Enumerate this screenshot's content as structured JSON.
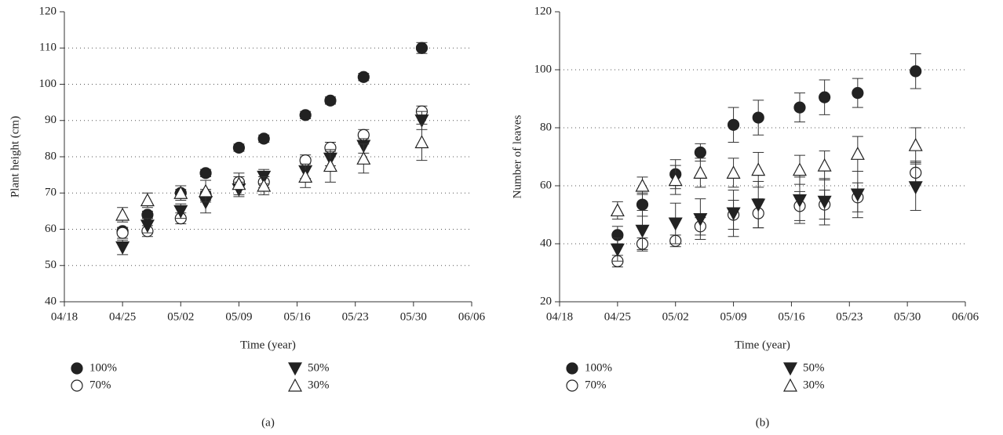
{
  "chart_data": [
    {
      "type": "scatter",
      "caption": "(a)",
      "x_label": "Time (year)",
      "y_label": "Plant height (cm)",
      "xlim": [
        "04/18",
        "06/06"
      ],
      "xticks": [
        "04/18",
        "04/25",
        "05/02",
        "05/09",
        "05/16",
        "05/23",
        "05/30",
        "06/06"
      ],
      "ylim": [
        40,
        120
      ],
      "yticks": [
        40,
        50,
        60,
        70,
        80,
        90,
        100,
        110,
        120
      ],
      "grid": true,
      "x": [
        "04/25",
        "04/28",
        "05/02",
        "05/05",
        "05/09",
        "05/12",
        "05/17",
        "05/20",
        "05/24",
        "05/31"
      ],
      "series": [
        {
          "name": "100%",
          "color": "#222222",
          "marker": "circle",
          "filled": true,
          "values": [
            59.5,
            64,
            70,
            75.5,
            82.5,
            85,
            91.5,
            95.5,
            102,
            110
          ],
          "errors": [
            1,
            1,
            1,
            1,
            1,
            1,
            1,
            1,
            1,
            1.5
          ]
        },
        {
          "name": "70%",
          "color": "#222222",
          "marker": "circle",
          "filled": false,
          "values": [
            59,
            59.5,
            63,
            69.5,
            73,
            73,
            79,
            82.5,
            86,
            92.5
          ],
          "errors": [
            1.5,
            1.5,
            1.5,
            1.5,
            1.5,
            1.5,
            1.5,
            1.5,
            1.5,
            1.5
          ]
        },
        {
          "name": "50%",
          "color": "#222222",
          "marker": "triangle-down",
          "filled": true,
          "values": [
            55,
            61,
            65,
            67.5,
            71,
            74.5,
            76,
            79.5,
            83,
            90
          ],
          "errors": [
            2,
            2,
            2,
            3,
            2,
            2,
            2,
            2,
            2,
            2.5
          ]
        },
        {
          "name": "30%",
          "color": "#222222",
          "marker": "triangle-up",
          "filled": false,
          "values": [
            64,
            68,
            70,
            70.5,
            72.5,
            72,
            74.5,
            77.5,
            79.5,
            84
          ],
          "errors": [
            2,
            2,
            2,
            3,
            3,
            2.5,
            3,
            4.5,
            4,
            5
          ]
        }
      ]
    },
    {
      "type": "scatter",
      "caption": "(b)",
      "x_label": "Time (year)",
      "y_label": "Number of leaves",
      "xlim": [
        "04/18",
        "06/06"
      ],
      "xticks": [
        "04/18",
        "04/25",
        "05/02",
        "05/09",
        "05/16",
        "05/23",
        "05/30",
        "06/06"
      ],
      "ylim": [
        20,
        120
      ],
      "yticks": [
        20,
        40,
        60,
        80,
        100,
        120
      ],
      "grid": true,
      "x": [
        "04/25",
        "04/28",
        "05/02",
        "05/05",
        "05/09",
        "05/12",
        "05/17",
        "05/20",
        "05/24",
        "05/31"
      ],
      "series": [
        {
          "name": "100%",
          "color": "#222222",
          "marker": "circle",
          "filled": true,
          "values": [
            43,
            53.5,
            64,
            71.5,
            81,
            83.5,
            87,
            90.5,
            92,
            99.5
          ],
          "errors": [
            3,
            4,
            5,
            3,
            6,
            6,
            5,
            6,
            5,
            6
          ]
        },
        {
          "name": "70%",
          "color": "#222222",
          "marker": "circle",
          "filled": false,
          "values": [
            34,
            40,
            41,
            46,
            50,
            50.5,
            53,
            53.5,
            56,
            64.5
          ],
          "errors": [
            2,
            2,
            2,
            3,
            5,
            5,
            5,
            5,
            5,
            4
          ]
        },
        {
          "name": "50%",
          "color": "#222222",
          "marker": "triangle-down",
          "filled": true,
          "values": [
            38,
            44.5,
            47,
            48.5,
            50.5,
            53.5,
            55,
            54.5,
            57,
            59.5
          ],
          "errors": [
            4,
            7,
            7,
            7,
            8,
            8,
            8,
            8,
            8,
            8
          ]
        },
        {
          "name": "30%",
          "color": "#222222",
          "marker": "triangle-up",
          "filled": false,
          "values": [
            51.5,
            60,
            62,
            64.5,
            64.5,
            65.5,
            65.5,
            67,
            71,
            74
          ],
          "errors": [
            3,
            3,
            5,
            5,
            5,
            6,
            5,
            5,
            6,
            6
          ]
        }
      ]
    }
  ]
}
